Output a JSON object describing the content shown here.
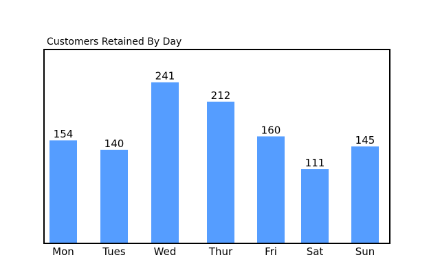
{
  "chart_data": {
    "type": "bar",
    "title": "Customers Retained By Day",
    "categories": [
      "Mon",
      "Tues",
      "Wed",
      "Thur",
      "Fri",
      "Sat",
      "Sun"
    ],
    "values": [
      154,
      140,
      241,
      212,
      160,
      111,
      145
    ],
    "xlabel": "",
    "ylabel": "",
    "ylim": [
      0,
      290
    ],
    "grid": false,
    "data_labels": true,
    "bar_color": "#559dff",
    "frame_color": "#000000"
  }
}
